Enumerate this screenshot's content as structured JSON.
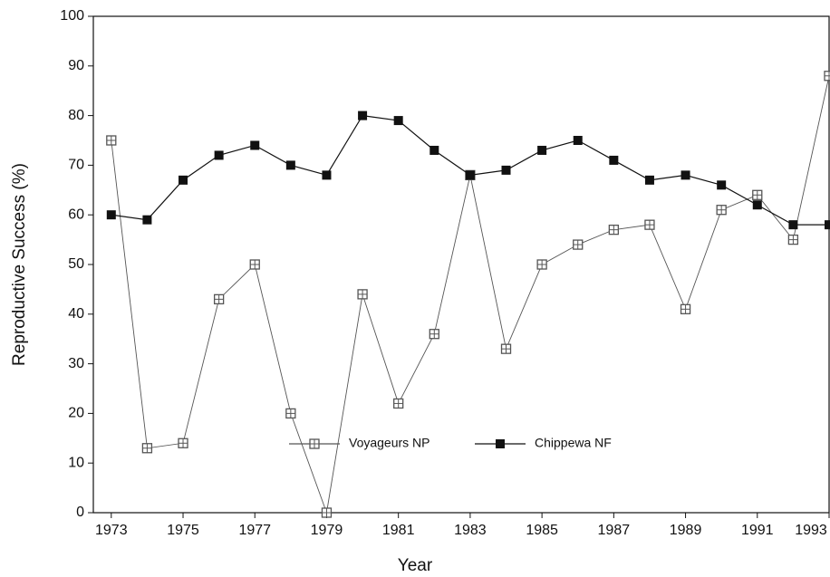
{
  "chart_data": {
    "type": "line",
    "xlabel": "Year",
    "ylabel": "Reproductive Success (%)",
    "x": [
      1973,
      1974,
      1975,
      1976,
      1977,
      1978,
      1979,
      1980,
      1981,
      1982,
      1983,
      1984,
      1985,
      1986,
      1987,
      1988,
      1989,
      1990,
      1991,
      1992,
      1993
    ],
    "series": [
      {
        "name": "Voyageurs NP",
        "color": "#555555",
        "marker": "open",
        "values": [
          75,
          13,
          14,
          43,
          50,
          20,
          0,
          44,
          22,
          36,
          68,
          33,
          50,
          54,
          57,
          58,
          41,
          61,
          64,
          55,
          88
        ]
      },
      {
        "name": "Chippewa NF",
        "color": "#111111",
        "marker": "filled",
        "values": [
          60,
          59,
          67,
          72,
          74,
          70,
          68,
          80,
          79,
          73,
          68,
          69,
          73,
          75,
          71,
          67,
          68,
          66,
          62,
          58,
          58
        ]
      }
    ],
    "xlim": [
      1972.5,
      1993
    ],
    "xticks": [
      1973,
      1975,
      1977,
      1979,
      1981,
      1983,
      1985,
      1987,
      1989,
      1991,
      1993
    ],
    "ylim": [
      0,
      100
    ],
    "yticks": [
      0,
      10,
      20,
      30,
      40,
      50,
      60,
      70,
      80,
      90,
      100
    ],
    "legend": "lower center",
    "grid": false
  }
}
